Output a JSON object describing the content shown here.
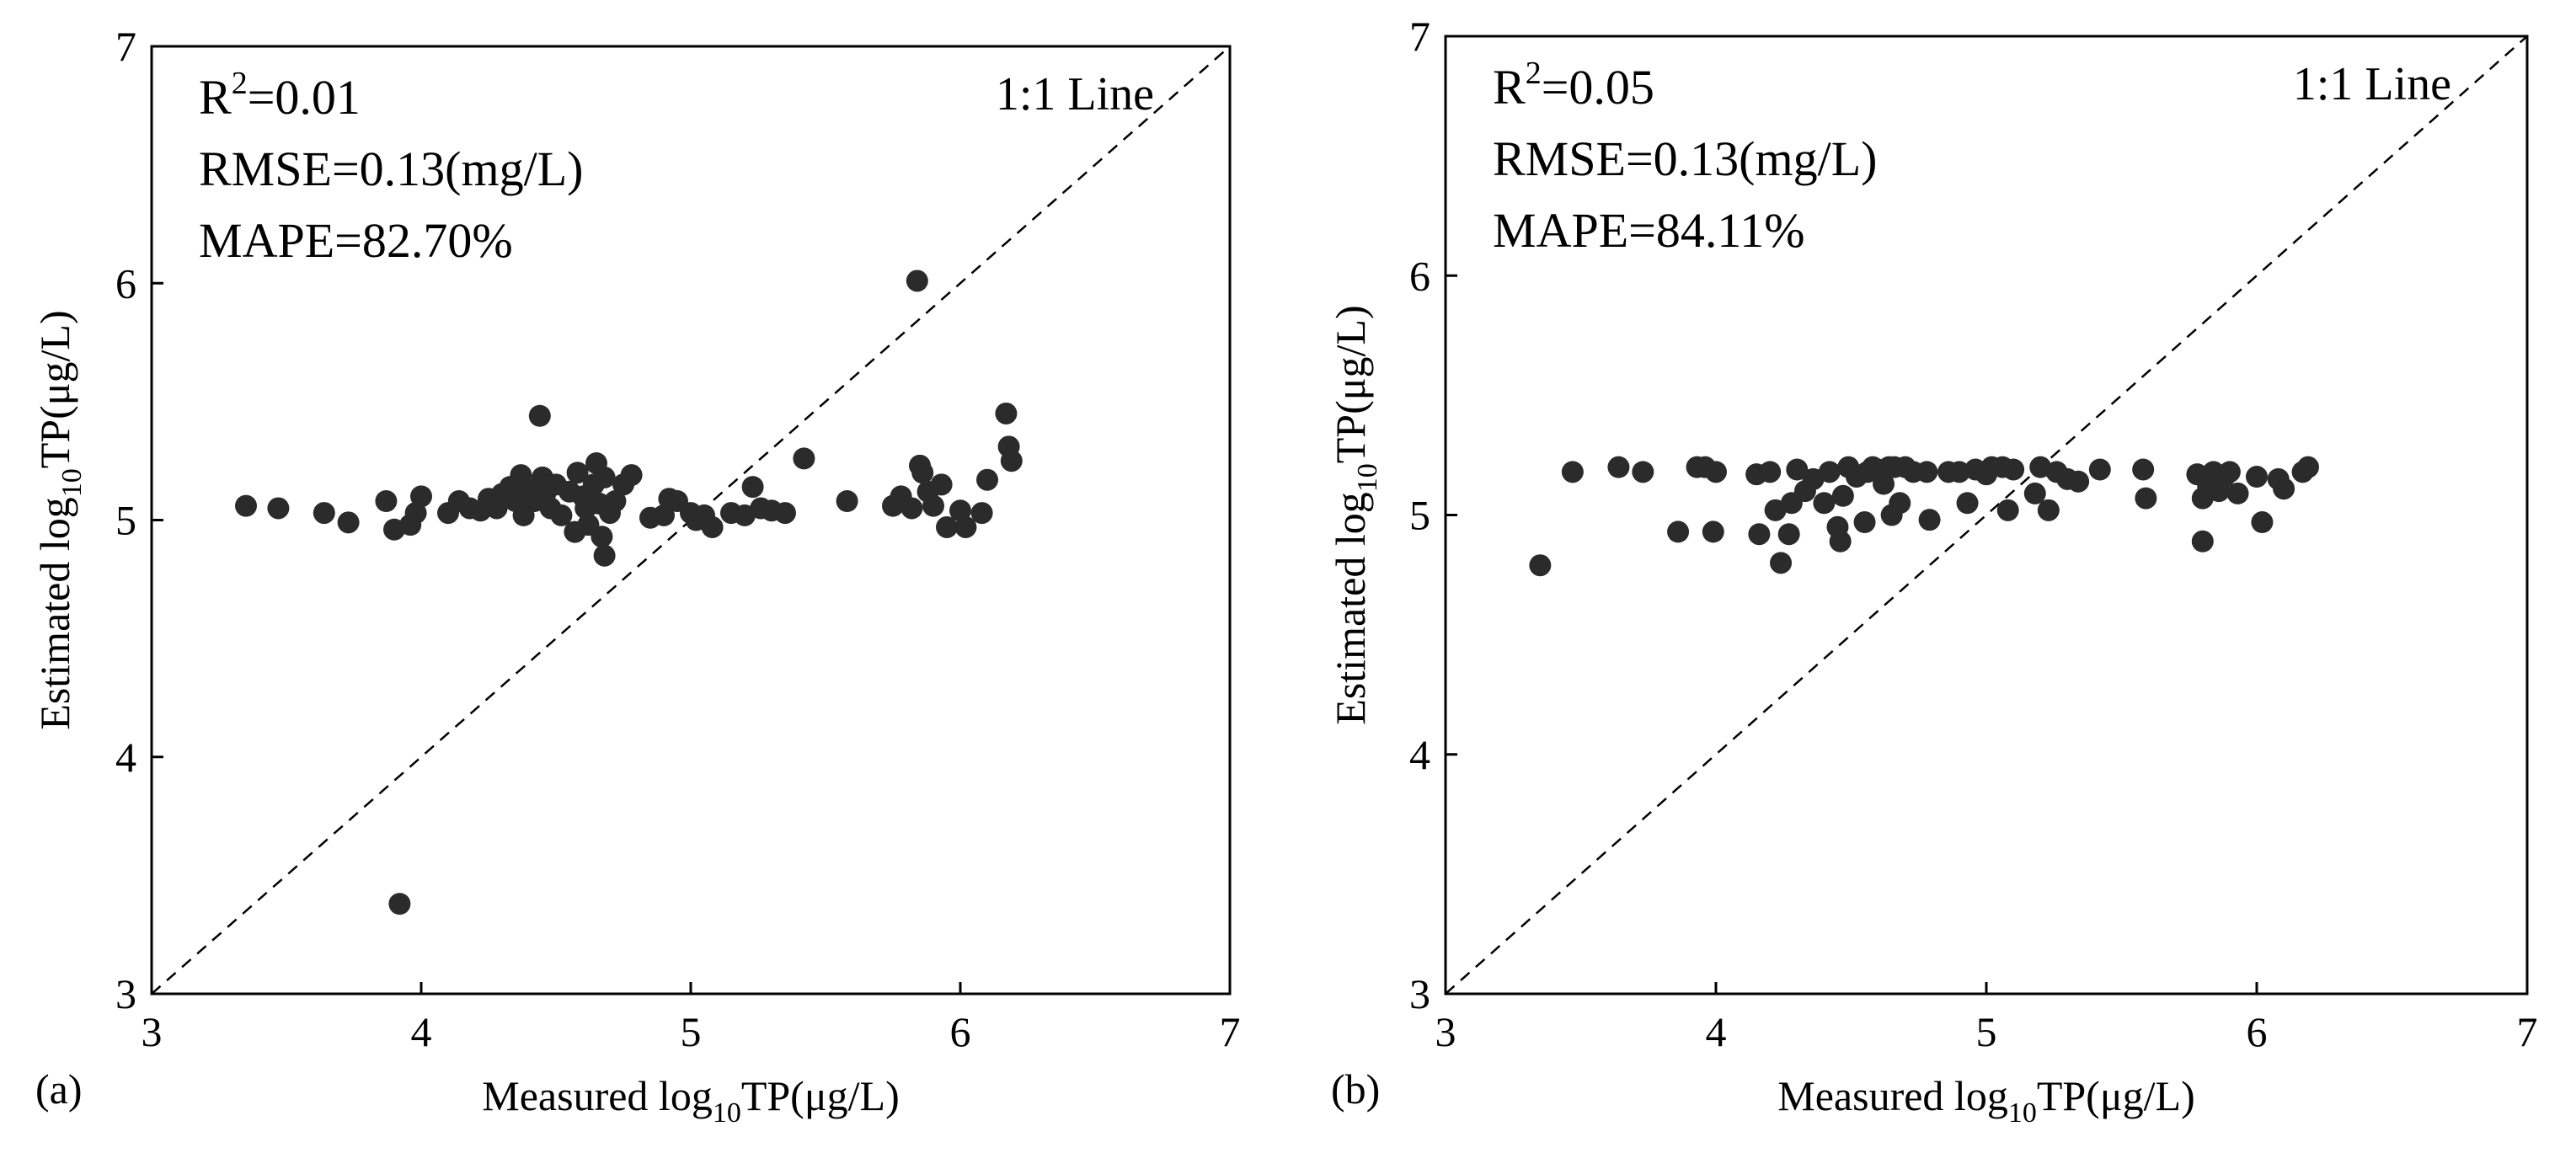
{
  "chart_data": [
    {
      "type": "scatter",
      "panel_label": "(a)",
      "xlabel": {
        "prefix": "Measured log",
        "sub": "10",
        "suffix": "TP(μg/L)"
      },
      "ylabel": {
        "prefix": "Estimated log",
        "sub": "10",
        "suffix": "TP(μg/L)"
      },
      "xlim": [
        3,
        7
      ],
      "ylim": [
        3,
        7
      ],
      "xticks": [
        3,
        4,
        5,
        6,
        7
      ],
      "yticks": [
        3,
        4,
        5,
        6,
        7
      ],
      "stats": {
        "r2_prefix": "R",
        "r2_sup": "2",
        "r2_value": "=0.01",
        "rmse": "RMSE=0.13(mg/L)",
        "mape": "MAPE=82.70%"
      },
      "reference_line": "1:1 Line",
      "point_color": "#2b2b2b",
      "points": [
        [
          3.35,
          5.06
        ],
        [
          3.47,
          5.05
        ],
        [
          3.64,
          5.03
        ],
        [
          3.73,
          4.99
        ],
        [
          3.87,
          5.08
        ],
        [
          3.9,
          4.96
        ],
        [
          3.96,
          4.98
        ],
        [
          3.98,
          5.03
        ],
        [
          4.0,
          5.1
        ],
        [
          4.1,
          5.03
        ],
        [
          4.14,
          5.08
        ],
        [
          4.18,
          5.05
        ],
        [
          4.22,
          5.04
        ],
        [
          4.25,
          5.09
        ],
        [
          4.28,
          5.05
        ],
        [
          4.3,
          5.11
        ],
        [
          4.33,
          5.14
        ],
        [
          4.35,
          5.08
        ],
        [
          4.37,
          5.19
        ],
        [
          4.38,
          5.02
        ],
        [
          4.4,
          5.13
        ],
        [
          4.42,
          5.08
        ],
        [
          4.44,
          5.44
        ],
        [
          4.45,
          5.18
        ],
        [
          4.46,
          5.11
        ],
        [
          4.48,
          5.05
        ],
        [
          4.5,
          5.15
        ],
        [
          4.52,
          5.02
        ],
        [
          4.55,
          5.12
        ],
        [
          4.57,
          4.95
        ],
        [
          4.58,
          5.2
        ],
        [
          4.6,
          5.1
        ],
        [
          4.61,
          5.05
        ],
        [
          4.62,
          4.98
        ],
        [
          4.64,
          5.15
        ],
        [
          4.65,
          5.24
        ],
        [
          4.66,
          5.07
        ],
        [
          4.67,
          4.93
        ],
        [
          4.68,
          5.18
        ],
        [
          4.7,
          5.03
        ],
        [
          4.72,
          5.08
        ],
        [
          4.75,
          5.15
        ],
        [
          4.78,
          5.19
        ],
        [
          4.85,
          5.01
        ],
        [
          4.9,
          5.02
        ],
        [
          4.92,
          5.09
        ],
        [
          4.95,
          5.08
        ],
        [
          5.0,
          5.03
        ],
        [
          5.02,
          5.0
        ],
        [
          5.05,
          5.02
        ],
        [
          5.08,
          4.97
        ],
        [
          5.15,
          5.03
        ],
        [
          5.2,
          5.02
        ],
        [
          5.23,
          5.14
        ],
        [
          5.26,
          5.05
        ],
        [
          5.3,
          5.04
        ],
        [
          5.35,
          5.03
        ],
        [
          5.42,
          5.26
        ],
        [
          5.58,
          5.08
        ],
        [
          5.75,
          5.06
        ],
        [
          5.78,
          5.1
        ],
        [
          5.82,
          5.05
        ],
        [
          5.84,
          6.01
        ],
        [
          5.85,
          5.23
        ],
        [
          5.86,
          5.2
        ],
        [
          5.88,
          5.12
        ],
        [
          5.9,
          5.06
        ],
        [
          5.93,
          5.15
        ],
        [
          5.95,
          4.97
        ],
        [
          6.0,
          5.04
        ],
        [
          6.02,
          4.97
        ],
        [
          6.08,
          5.03
        ],
        [
          6.1,
          5.17
        ],
        [
          6.17,
          5.45
        ],
        [
          6.18,
          5.31
        ],
        [
          6.19,
          5.25
        ],
        [
          4.68,
          4.85
        ],
        [
          3.92,
          3.38
        ]
      ]
    },
    {
      "type": "scatter",
      "panel_label": "(b)",
      "xlabel": {
        "prefix": "Measured log",
        "sub": "10",
        "suffix": "TP(μg/L)"
      },
      "ylabel": {
        "prefix": "Estimated log",
        "sub": "10",
        "suffix": "TP(μg/L)"
      },
      "xlim": [
        3,
        7
      ],
      "ylim": [
        3,
        7
      ],
      "xticks": [
        3,
        4,
        5,
        6,
        7
      ],
      "yticks": [
        3,
        4,
        5,
        6,
        7
      ],
      "stats": {
        "r2_prefix": "R",
        "r2_sup": "2",
        "r2_value": "=0.05",
        "rmse": "RMSE=0.13(mg/L)",
        "mape": "MAPE=84.11%"
      },
      "reference_line": "1:1 Line",
      "point_color": "#2b2b2b",
      "points": [
        [
          3.35,
          4.79
        ],
        [
          3.47,
          5.18
        ],
        [
          3.64,
          5.2
        ],
        [
          3.73,
          5.18
        ],
        [
          3.86,
          4.93
        ],
        [
          3.93,
          5.2
        ],
        [
          3.96,
          5.2
        ],
        [
          4.0,
          5.18
        ],
        [
          3.99,
          4.93
        ],
        [
          4.15,
          5.17
        ],
        [
          4.16,
          4.92
        ],
        [
          4.2,
          5.18
        ],
        [
          4.22,
          5.02
        ],
        [
          4.24,
          4.8
        ],
        [
          4.27,
          4.92
        ],
        [
          4.28,
          5.05
        ],
        [
          4.3,
          5.19
        ],
        [
          4.33,
          5.1
        ],
        [
          4.36,
          5.15
        ],
        [
          4.4,
          5.05
        ],
        [
          4.42,
          5.18
        ],
        [
          4.45,
          4.95
        ],
        [
          4.46,
          4.89
        ],
        [
          4.47,
          5.08
        ],
        [
          4.49,
          5.2
        ],
        [
          4.52,
          5.16
        ],
        [
          4.55,
          4.97
        ],
        [
          4.56,
          5.18
        ],
        [
          4.58,
          5.2
        ],
        [
          4.6,
          5.19
        ],
        [
          4.62,
          5.13
        ],
        [
          4.64,
          5.2
        ],
        [
          4.65,
          5.0
        ],
        [
          4.66,
          5.2
        ],
        [
          4.68,
          5.05
        ],
        [
          4.7,
          5.2
        ],
        [
          4.73,
          5.18
        ],
        [
          4.78,
          5.18
        ],
        [
          4.79,
          4.98
        ],
        [
          4.86,
          5.18
        ],
        [
          4.9,
          5.18
        ],
        [
          4.93,
          5.05
        ],
        [
          4.96,
          5.19
        ],
        [
          5.0,
          5.17
        ],
        [
          5.02,
          5.2
        ],
        [
          5.06,
          5.2
        ],
        [
          5.08,
          5.02
        ],
        [
          5.1,
          5.19
        ],
        [
          5.18,
          5.09
        ],
        [
          5.2,
          5.2
        ],
        [
          5.23,
          5.02
        ],
        [
          5.26,
          5.18
        ],
        [
          5.3,
          5.15
        ],
        [
          5.34,
          5.14
        ],
        [
          5.42,
          5.19
        ],
        [
          5.58,
          5.19
        ],
        [
          5.59,
          5.07
        ],
        [
          5.78,
          5.17
        ],
        [
          5.8,
          5.07
        ],
        [
          5.8,
          4.89
        ],
        [
          5.82,
          5.12
        ],
        [
          5.84,
          5.18
        ],
        [
          5.86,
          5.1
        ],
        [
          5.88,
          5.16
        ],
        [
          5.9,
          5.18
        ],
        [
          5.93,
          5.09
        ],
        [
          6.0,
          5.16
        ],
        [
          6.02,
          4.97
        ],
        [
          6.08,
          5.15
        ],
        [
          6.1,
          5.11
        ],
        [
          6.17,
          5.18
        ],
        [
          6.19,
          5.2
        ]
      ]
    }
  ]
}
